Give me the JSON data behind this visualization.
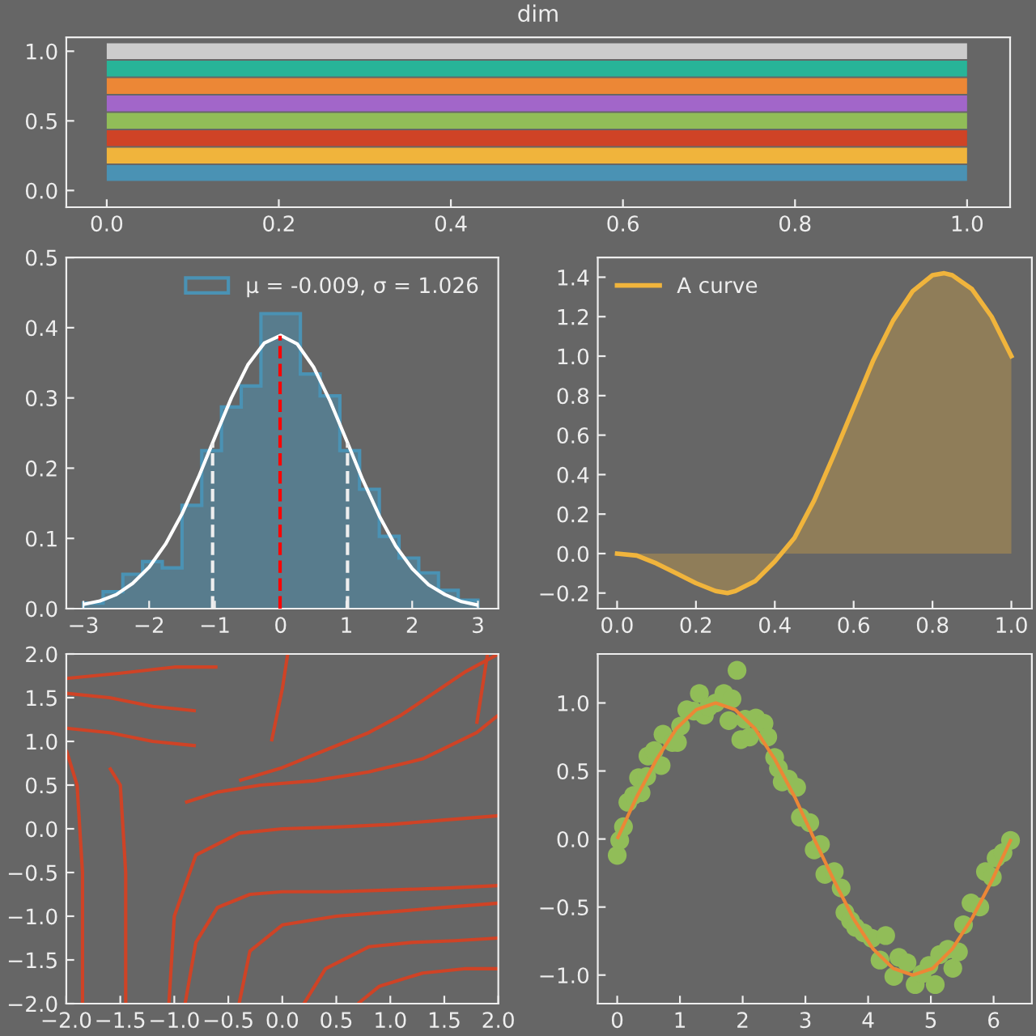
{
  "chart_data": [
    {
      "type": "line",
      "title": "dim",
      "legend": false,
      "grid": false,
      "line_style": "solid",
      "marker": "none",
      "xlim": [
        -0.047,
        1.05
      ],
      "ylim": [
        -0.12,
        1.1
      ],
      "xticks": [
        {
          "value": 0,
          "label": "0.0"
        },
        {
          "value": 0.2,
          "label": "0.2"
        },
        {
          "value": 0.4,
          "label": "0.4"
        },
        {
          "value": 0.6,
          "label": "0.6"
        },
        {
          "value": 0.8,
          "label": "0.8"
        },
        {
          "value": 1,
          "label": "1.0"
        }
      ],
      "yticks": [
        {
          "value": 0,
          "label": "0.0"
        },
        {
          "value": 0.5,
          "label": "0.5"
        },
        {
          "value": 1,
          "label": "1.0"
        }
      ],
      "series": [
        {
          "color": "#4a92b4",
          "x": [
            0,
            1
          ],
          "values": [
            0.125,
            0.125
          ]
        },
        {
          "color": "#f0b43c",
          "x": [
            0,
            1
          ],
          "values": [
            0.25,
            0.25
          ]
        },
        {
          "color": "#cf4326",
          "x": [
            0,
            1
          ],
          "values": [
            0.375,
            0.375
          ]
        },
        {
          "color": "#91bd58",
          "x": [
            0,
            1
          ],
          "values": [
            0.5,
            0.5
          ]
        },
        {
          "color": "#a266c9",
          "x": [
            0,
            1
          ],
          "values": [
            0.625,
            0.625
          ]
        },
        {
          "color": "#ec8736",
          "x": [
            0,
            1
          ],
          "values": [
            0.75,
            0.75
          ]
        },
        {
          "color": "#28b498",
          "x": [
            0,
            1
          ],
          "values": [
            0.875,
            0.875
          ]
        },
        {
          "color": "#cccccc",
          "x": [
            0,
            1
          ],
          "values": [
            1.0,
            1.0
          ]
        }
      ]
    },
    {
      "type": "histogram",
      "legend": "top right",
      "grid": false,
      "xlim": [
        -3.26,
        3.31
      ],
      "ylim": [
        0,
        0.5
      ],
      "xticks": [
        {
          "value": -3,
          "label": "−3"
        },
        {
          "value": -2,
          "label": "−2"
        },
        {
          "value": -1,
          "label": "−1"
        },
        0,
        1,
        2,
        3
      ],
      "yticks": [
        {
          "value": 0,
          "label": "0.0"
        },
        0.1,
        0.2,
        0.3,
        0.4,
        0.5
      ],
      "bins": [
        -3.0,
        -2.7,
        -2.4,
        -2.1,
        -1.8,
        -1.5,
        -1.2,
        -0.9,
        -0.6,
        -0.3,
        0.0,
        0.3,
        0.6,
        0.9,
        1.2,
        1.5,
        1.8,
        2.1,
        2.4,
        2.7,
        3.0
      ],
      "series": [
        {
          "type": "histogram",
          "name": "μ = -0.009, σ = 1.026",
          "color": "#4a92b4",
          "values": [
            0.008,
            0.024,
            0.049,
            0.067,
            0.058,
            0.147,
            0.225,
            0.287,
            0.317,
            0.42,
            0.42,
            0.334,
            0.303,
            0.225,
            0.17,
            0.103,
            0.072,
            0.051,
            0.026,
            0.012
          ]
        },
        {
          "type": "line",
          "color": "#ffffff",
          "x": [
            -3,
            -2.75,
            -2.5,
            -2.25,
            -2,
            -1.75,
            -1.5,
            -1.25,
            -1,
            -0.75,
            -0.5,
            -0.25,
            0,
            0.25,
            0.5,
            0.75,
            1,
            1.25,
            1.5,
            1.75,
            2,
            2.25,
            2.5,
            2.75,
            3
          ],
          "values": [
            0.006,
            0.011,
            0.02,
            0.036,
            0.059,
            0.092,
            0.135,
            0.187,
            0.244,
            0.3,
            0.347,
            0.378,
            0.389,
            0.377,
            0.344,
            0.296,
            0.24,
            0.183,
            0.132,
            0.089,
            0.057,
            0.034,
            0.02,
            0.01,
            0.005
          ]
        }
      ],
      "ref_lines": [
        {
          "axis": "x",
          "value": -0.009,
          "color": "#ff0000",
          "line_style": "dashed"
        },
        {
          "axis": "x",
          "value": -1.035,
          "color": "#eeeeee",
          "line_style": "dashed"
        },
        {
          "axis": "x",
          "value": 1.017,
          "color": "#eeeeee",
          "line_style": "dashed"
        }
      ]
    },
    {
      "type": "area",
      "legend": "top left",
      "grid": false,
      "xlim": [
        -0.049,
        1.052
      ],
      "ylim": [
        -0.279,
        1.5
      ],
      "xticks": [
        {
          "value": 0,
          "label": "0.0"
        },
        {
          "value": 0.2,
          "label": "0.2"
        },
        {
          "value": 0.4,
          "label": "0.4"
        },
        {
          "value": 0.6,
          "label": "0.6"
        },
        {
          "value": 0.8,
          "label": "0.8"
        },
        {
          "value": 1,
          "label": "1.0"
        }
      ],
      "yticks": [
        {
          "value": -0.2,
          "label": "−0.2"
        },
        {
          "value": 0,
          "label": "0.0"
        },
        0.2,
        0.4,
        0.6,
        0.8,
        {
          "value": 1,
          "label": "1.0"
        },
        1.2,
        1.4
      ],
      "series": [
        {
          "name": "A curve",
          "color": "#f0b43c",
          "x": [
            0,
            0.05,
            0.1,
            0.15,
            0.2,
            0.25,
            0.28,
            0.3,
            0.35,
            0.4,
            0.45,
            0.5,
            0.55,
            0.6,
            0.65,
            0.7,
            0.75,
            0.8,
            0.83,
            0.85,
            0.9,
            0.95,
            1.0
          ],
          "values": [
            0,
            -0.01,
            -0.05,
            -0.1,
            -0.15,
            -0.19,
            -0.2,
            -0.19,
            -0.14,
            -0.04,
            0.08,
            0.27,
            0.5,
            0.74,
            0.98,
            1.18,
            1.33,
            1.41,
            1.42,
            1.41,
            1.34,
            1.2,
            1.0
          ]
        }
      ]
    },
    {
      "type": "line",
      "legend": false,
      "grid": false,
      "xlim": [
        -2,
        2
      ],
      "ylim": [
        -2,
        2
      ],
      "xticks": [
        {
          "value": -2,
          "label": "−2.0"
        },
        {
          "value": -1.5,
          "label": "−1.5"
        },
        {
          "value": -1,
          "label": "−1.0"
        },
        {
          "value": -0.5,
          "label": "−0.5"
        },
        {
          "value": 0,
          "label": "0.0"
        },
        0.5,
        {
          "value": 1,
          "label": "1.0"
        },
        1.5,
        {
          "value": 2,
          "label": "2.0"
        }
      ],
      "yticks": [
        {
          "value": -2,
          "label": "−2.0"
        },
        {
          "value": -1.5,
          "label": "−1.5"
        },
        {
          "value": -1,
          "label": "−1.0"
        },
        {
          "value": -0.5,
          "label": "−0.5"
        },
        {
          "value": 0,
          "label": "0.0"
        },
        0.5,
        {
          "value": 1,
          "label": "1.0"
        },
        1.5,
        {
          "value": 2,
          "label": "2.0"
        }
      ],
      "series": [
        {
          "color": "#cf4326",
          "x": [
            -0.9,
            -0.8,
            -0.6,
            -0.3,
            0,
            0.5,
            1,
            1.5,
            2
          ],
          "values": [
            -2,
            -1.3,
            -0.9,
            -0.75,
            -0.72,
            -0.72,
            -0.7,
            -0.68,
            -0.65
          ]
        },
        {
          "color": "#cf4326",
          "x": [
            -1.05,
            -1.0,
            -0.8,
            -0.4,
            0,
            0.5,
            1,
            1.5,
            2
          ],
          "values": [
            -2,
            -1.0,
            -0.3,
            -0.05,
            0,
            0.02,
            0.05,
            0.1,
            0.15
          ]
        },
        {
          "color": "#cf4326",
          "x": [
            -0.4,
            -0.3,
            0,
            0.5,
            1,
            1.5,
            2
          ],
          "values": [
            -2,
            -1.4,
            -1.1,
            -1.0,
            -0.95,
            -0.9,
            -0.85
          ]
        },
        {
          "color": "#cf4326",
          "x": [
            0.2,
            0.4,
            0.8,
            1.2,
            1.6,
            2
          ],
          "values": [
            -2,
            -1.6,
            -1.35,
            -1.3,
            -1.28,
            -1.25
          ]
        },
        {
          "color": "#cf4326",
          "x": [
            0.7,
            0.9,
            1.3,
            1.7,
            2
          ],
          "values": [
            -2,
            -1.8,
            -1.65,
            -1.6,
            -1.6
          ]
        },
        {
          "color": "#cf4326",
          "x": [
            -0.9,
            -0.6,
            -0.2,
            0.3,
            0.8,
            1.3,
            1.8,
            2
          ],
          "values": [
            0.3,
            0.42,
            0.5,
            0.55,
            0.65,
            0.8,
            1.1,
            1.3
          ]
        },
        {
          "color": "#cf4326",
          "x": [
            -0.4,
            0,
            0.4,
            0.8,
            1.1,
            1.4,
            1.7,
            2
          ],
          "values": [
            0.55,
            0.7,
            0.9,
            1.1,
            1.3,
            1.55,
            1.8,
            2
          ]
        },
        {
          "color": "#cf4326",
          "x": [
            -0.1,
            -0.05,
            0,
            0.05
          ],
          "values": [
            1.0,
            1.3,
            1.6,
            2.0
          ]
        },
        {
          "color": "#cf4326",
          "x": [
            -1.85,
            -1.85,
            -1.9,
            -2.0
          ],
          "values": [
            -2,
            -0.5,
            0.5,
            0.9
          ]
        },
        {
          "color": "#cf4326",
          "x": [
            -1.45,
            -1.45,
            -1.5,
            -1.6
          ],
          "values": [
            -2,
            -0.5,
            0.5,
            0.7
          ]
        },
        {
          "color": "#cf4326",
          "x": [
            -0.6,
            -1.0,
            -1.5,
            -2
          ],
          "values": [
            1.85,
            1.85,
            1.78,
            1.72
          ]
        },
        {
          "color": "#cf4326",
          "x": [
            -0.8,
            -1.2,
            -1.6,
            -2.0
          ],
          "values": [
            1.35,
            1.4,
            1.5,
            1.55
          ]
        },
        {
          "color": "#cf4326",
          "x": [
            -0.8,
            -1.2,
            -1.6,
            -2.0
          ],
          "values": [
            0.95,
            1.0,
            1.1,
            1.15
          ]
        },
        {
          "color": "#cf4326",
          "x": [
            1.8,
            1.85,
            1.9
          ],
          "values": [
            1.2,
            1.6,
            2.0
          ]
        }
      ]
    },
    {
      "type": "scatter",
      "legend": false,
      "grid": false,
      "marker": "circle",
      "xlim": [
        -0.31,
        6.61
      ],
      "ylim": [
        -1.21,
        1.36
      ],
      "xticks": [
        0,
        1,
        2,
        3,
        4,
        5,
        6
      ],
      "yticks": [
        {
          "value": -1,
          "label": "−1.0"
        },
        {
          "value": -0.5,
          "label": "−0.5"
        },
        {
          "value": 0,
          "label": "0.0"
        },
        0.5,
        {
          "value": 1,
          "label": "1.0"
        }
      ],
      "series": [
        {
          "type": "scatter",
          "color": "#91bd58",
          "x": [
            0,
            0.04,
            0.1,
            0.17,
            0.26,
            0.34,
            0.38,
            0.47,
            0.49,
            0.59,
            0.7,
            0.73,
            0.88,
            0.96,
            1.01,
            1.11,
            1.22,
            1.31,
            1.39,
            1.46,
            1.57,
            1.7,
            1.78,
            1.83,
            1.91,
            1.97,
            2.04,
            2.11,
            2.21,
            2.34,
            2.4,
            2.51,
            2.57,
            2.63,
            2.73,
            2.86,
            2.92,
            3.07,
            3.14,
            3.24,
            3.31,
            3.46,
            3.57,
            3.63,
            3.72,
            3.8,
            3.93,
            4.06,
            4.19,
            4.28,
            4.41,
            4.49,
            4.62,
            4.75,
            4.86,
            4.97,
            5.07,
            5.14,
            5.27,
            5.35,
            5.44,
            5.52,
            5.64,
            5.78,
            5.87,
            5.98,
            6.04,
            6.15,
            6.27
          ],
          "values": [
            -0.12,
            -0.01,
            0.09,
            0.27,
            0.32,
            0.45,
            0.34,
            0.46,
            0.61,
            0.65,
            0.54,
            0.77,
            0.71,
            0.71,
            0.83,
            0.95,
            0.94,
            1.07,
            0.91,
            0.97,
            1.0,
            1.07,
            0.87,
            1.03,
            1.24,
            0.73,
            0.88,
            0.75,
            0.89,
            0.85,
            0.75,
            0.6,
            0.52,
            0.42,
            0.44,
            0.38,
            0.16,
            0.12,
            -0.08,
            -0.04,
            -0.26,
            -0.24,
            -0.36,
            -0.54,
            -0.6,
            -0.65,
            -0.69,
            -0.73,
            -0.89,
            -0.71,
            -1.01,
            -0.87,
            -0.91,
            -1.07,
            -0.99,
            -0.93,
            -1.07,
            -0.85,
            -0.81,
            -0.95,
            -0.83,
            -0.63,
            -0.47,
            -0.5,
            -0.24,
            -0.28,
            -0.14,
            -0.1,
            -0.01
          ]
        },
        {
          "type": "line",
          "color": "#ec8736",
          "marker": "none",
          "x": [
            0,
            0.31,
            0.63,
            0.94,
            1.26,
            1.57,
            1.88,
            2.2,
            2.51,
            2.83,
            3.14,
            3.46,
            3.77,
            4.08,
            4.4,
            4.71,
            5.03,
            5.34,
            5.65,
            5.97,
            6.28
          ],
          "values": [
            0,
            0.309,
            0.588,
            0.809,
            0.951,
            1,
            0.951,
            0.809,
            0.588,
            0.309,
            0,
            -0.309,
            -0.588,
            -0.809,
            -0.951,
            -1,
            -0.951,
            -0.809,
            -0.588,
            -0.309,
            0
          ]
        }
      ]
    }
  ]
}
